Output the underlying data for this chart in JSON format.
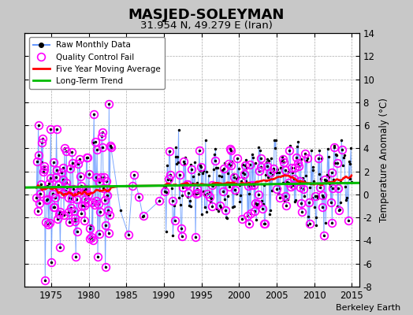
{
  "title": "MASJED-SOLEYMAN",
  "subtitle": "31.954 N, 49.279 E (Iran)",
  "ylabel": "Temperature Anomaly (°C)",
  "credit": "Berkeley Earth",
  "xlim": [
    1971.5,
    2016
  ],
  "ylim": [
    -8,
    14
  ],
  "yticks": [
    -8,
    -6,
    -4,
    -2,
    0,
    2,
    4,
    6,
    8,
    10,
    12,
    14
  ],
  "xticks": [
    1975,
    1980,
    1985,
    1990,
    1995,
    2000,
    2005,
    2010,
    2015
  ],
  "bg_color": "#c8c8c8",
  "plot_bg_color": "#ffffff",
  "grid_color": "#aaaaaa",
  "raw_color": "#6699ff",
  "raw_dot_color": "#000000",
  "ma_color": "#ff0000",
  "trend_color": "#00bb00",
  "qc_color": "#ff00ff",
  "raw_lw": 0.7,
  "ma_lw": 1.8,
  "trend_lw": 2.2,
  "qc_ms": 7,
  "dot_ms": 2.5
}
